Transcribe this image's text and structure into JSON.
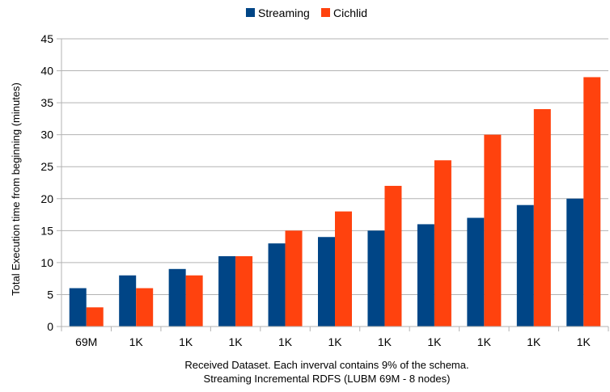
{
  "chart_data": {
    "type": "bar",
    "categories": [
      "69M",
      "1K",
      "1K",
      "1K",
      "1K",
      "1K",
      "1K",
      "1K",
      "1K",
      "1K",
      "1K"
    ],
    "series": [
      {
        "name": "Streaming",
        "color": "#004586",
        "values": [
          6,
          8,
          9,
          11,
          13,
          14,
          15,
          16,
          17,
          19,
          20
        ]
      },
      {
        "name": "Cichlid",
        "color": "#ff420e",
        "values": [
          3,
          6,
          8,
          11,
          15,
          18,
          22,
          26,
          30,
          34,
          39
        ]
      }
    ],
    "ylabel": "Total Execution time from beginning (minutes)",
    "xlabel": "Received Dataset. Each inverval contains 9% of the schema.",
    "xlabel2": "Streaming Incremental RDFS (LUBM 69M - 8 nodes)",
    "ylim": [
      0,
      45
    ],
    "yticks": [
      0,
      5,
      10,
      15,
      20,
      25,
      30,
      35,
      40,
      45
    ],
    "grid": true,
    "legend_position": "top"
  }
}
